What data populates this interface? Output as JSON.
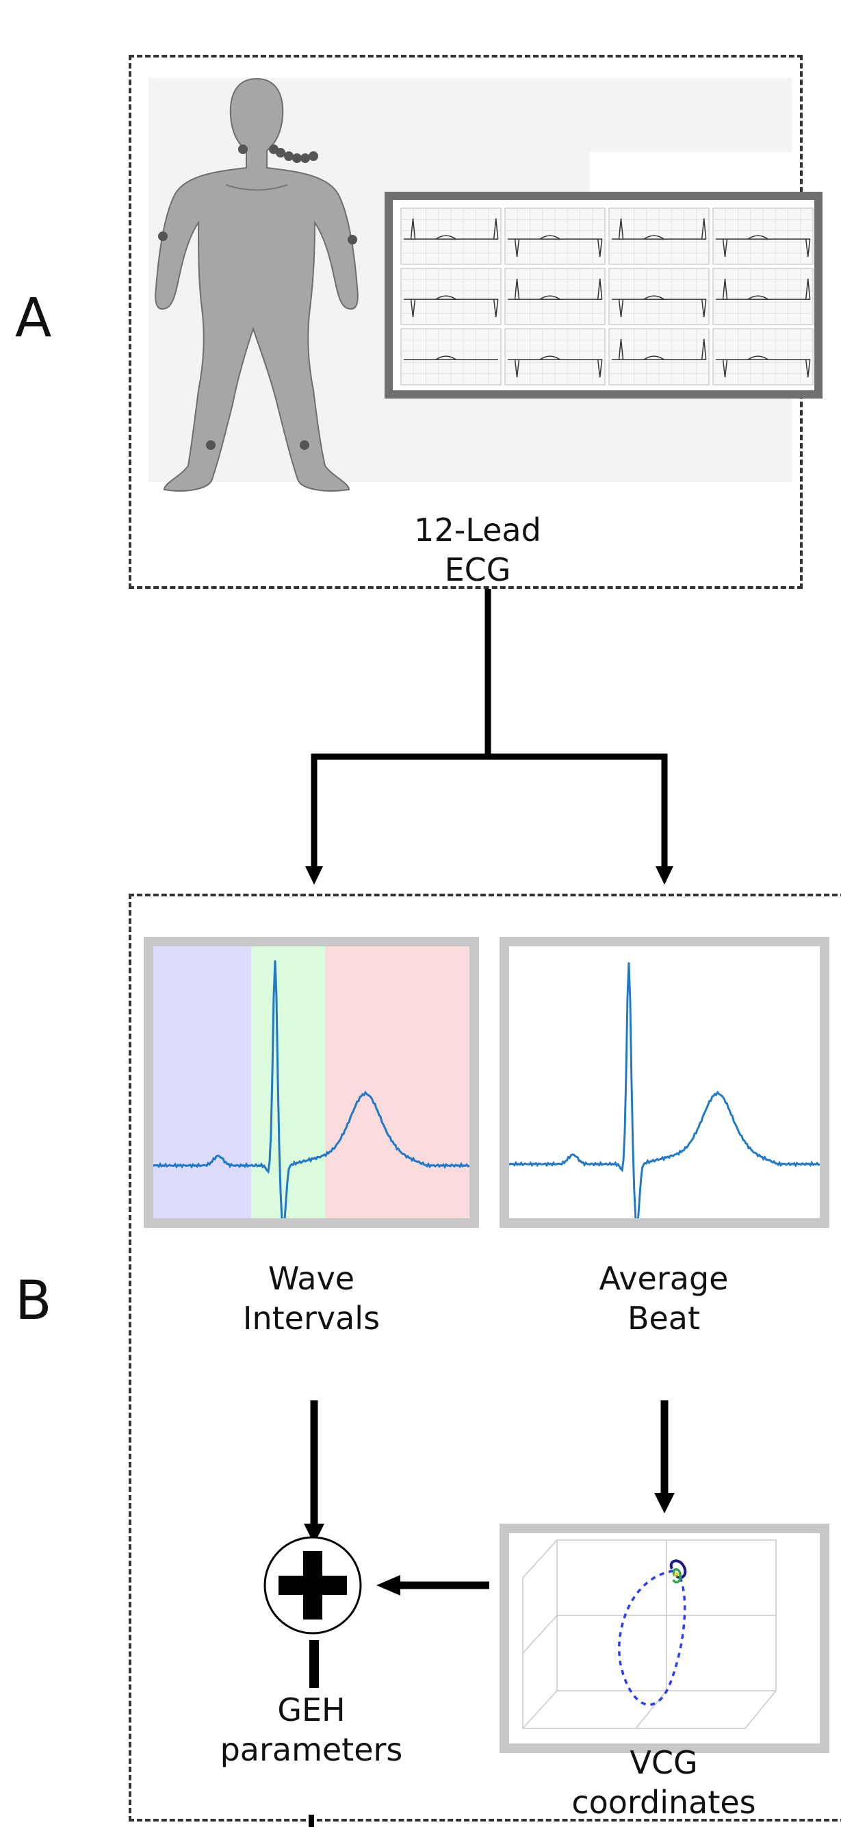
{
  "panels": {
    "a": {
      "letter": "A",
      "caption": "12-Lead\nECG"
    },
    "b": {
      "letter": "B"
    }
  },
  "wave_intervals": {
    "caption": "Wave\nIntervals"
  },
  "average_beat": {
    "caption": "Average\nBeat"
  },
  "vcg": {
    "caption": "VCG\ncoordinates"
  },
  "geh": {
    "caption": "GEH\nparameters"
  },
  "colors": {
    "ecg_trace": "#1f78c8",
    "p_region": "#dcdcfa",
    "qrs_region": "#dcfadc",
    "t_region": "#fadcdc",
    "body": "#a6a6a6",
    "vcg_loop": "#2b3cff"
  },
  "icons": {
    "body": "human-body-icon",
    "ecg_monitor": "ecg-monitor-icon",
    "sum": "plus-circle-icon"
  }
}
